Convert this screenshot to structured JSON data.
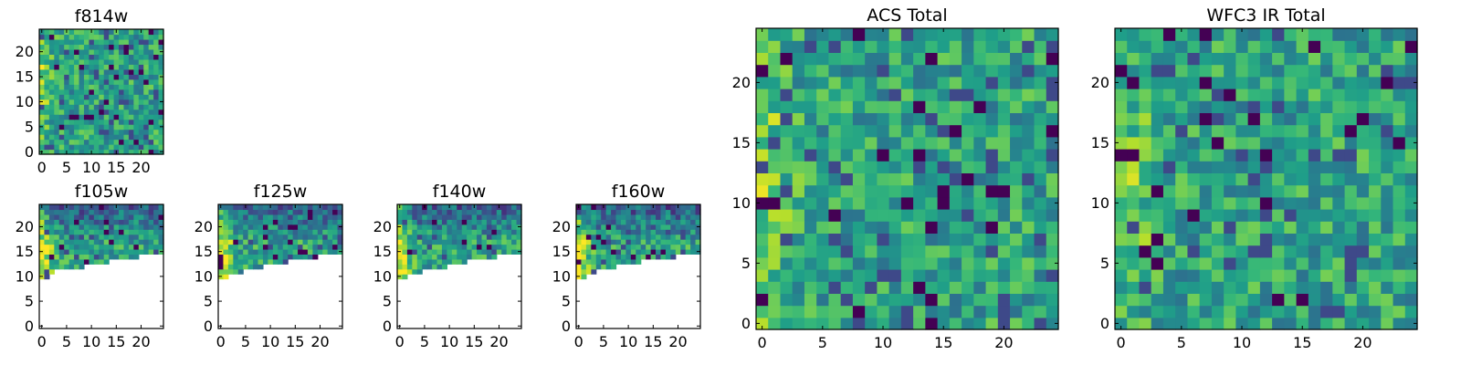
{
  "chart_data": [
    {
      "type": "heatmap",
      "title": "f814w",
      "xlim": [
        -0.5,
        24.5
      ],
      "ylim": [
        -0.5,
        24.5
      ],
      "xticks": [
        0,
        5,
        10,
        15,
        20
      ],
      "yticks": [
        0,
        5,
        10,
        15,
        20
      ],
      "grid_size": [
        25,
        25
      ],
      "coverage": "full",
      "colormap": "viridis",
      "seed": 11
    },
    {
      "type": "heatmap",
      "title": "f105w",
      "xlim": [
        -0.5,
        24.5
      ],
      "ylim": [
        -0.5,
        24.5
      ],
      "xticks": [
        0,
        5,
        10,
        15,
        20
      ],
      "yticks": [
        0,
        5,
        10,
        15,
        20
      ],
      "grid_size": [
        25,
        25
      ],
      "coverage": "upper-left wedge",
      "mask_min_row": [
        10,
        10,
        11,
        12,
        12,
        12,
        12,
        12,
        12,
        13,
        13,
        13,
        13,
        13,
        14,
        14,
        14,
        14,
        14,
        14,
        15,
        15,
        15,
        15,
        15
      ],
      "colormap": "viridis",
      "seed": 23
    },
    {
      "type": "heatmap",
      "title": "f125w",
      "xlim": [
        -0.5,
        24.5
      ],
      "ylim": [
        -0.5,
        24.5
      ],
      "xticks": [
        0,
        5,
        10,
        15,
        20
      ],
      "yticks": [
        0,
        5,
        10,
        15,
        20
      ],
      "grid_size": [
        25,
        25
      ],
      "coverage": "upper-left wedge",
      "mask_min_row": [
        10,
        10,
        11,
        11,
        11,
        12,
        12,
        12,
        12,
        13,
        13,
        13,
        13,
        13,
        14,
        14,
        14,
        14,
        14,
        14,
        15,
        15,
        15,
        15,
        15
      ],
      "colormap": "viridis",
      "seed": 37
    },
    {
      "type": "heatmap",
      "title": "f140w",
      "xlim": [
        -0.5,
        24.5
      ],
      "ylim": [
        -0.5,
        24.5
      ],
      "xticks": [
        0,
        5,
        10,
        15,
        20
      ],
      "yticks": [
        0,
        5,
        10,
        15,
        20
      ],
      "grid_size": [
        25,
        25
      ],
      "coverage": "upper-left wedge",
      "mask_min_row": [
        10,
        10,
        11,
        11,
        11,
        12,
        12,
        12,
        12,
        12,
        13,
        13,
        13,
        13,
        14,
        14,
        14,
        14,
        14,
        14,
        15,
        15,
        15,
        15,
        15
      ],
      "colormap": "viridis",
      "seed": 41
    },
    {
      "type": "heatmap",
      "title": "f160w",
      "xlim": [
        -0.5,
        24.5
      ],
      "ylim": [
        -0.5,
        24.5
      ],
      "xticks": [
        0,
        5,
        10,
        15,
        20
      ],
      "yticks": [
        0,
        5,
        10,
        15,
        20
      ],
      "grid_size": [
        25,
        25
      ],
      "coverage": "upper-left wedge",
      "mask_min_row": [
        10,
        10,
        11,
        11,
        12,
        12,
        12,
        12,
        13,
        13,
        13,
        13,
        13,
        14,
        14,
        14,
        14,
        14,
        14,
        14,
        15,
        15,
        15,
        15,
        15
      ],
      "colormap": "viridis",
      "seed": 53
    },
    {
      "type": "heatmap",
      "title": "ACS Total",
      "xlim": [
        -0.5,
        24.5
      ],
      "ylim": [
        -0.5,
        24.5
      ],
      "xticks": [
        0,
        5,
        10,
        15,
        20
      ],
      "yticks": [
        0,
        5,
        10,
        15,
        20
      ],
      "grid_size": [
        25,
        25
      ],
      "coverage": "full",
      "colormap": "viridis",
      "seed": 67
    },
    {
      "type": "heatmap",
      "title": "WFC3 IR Total",
      "xlim": [
        -0.5,
        24.5
      ],
      "ylim": [
        -0.5,
        24.5
      ],
      "xticks": [
        0,
        5,
        10,
        15,
        20
      ],
      "yticks": [
        0,
        5,
        10,
        15,
        20
      ],
      "grid_size": [
        25,
        25
      ],
      "coverage": "full",
      "colormap": "viridis",
      "seed": 79
    }
  ]
}
